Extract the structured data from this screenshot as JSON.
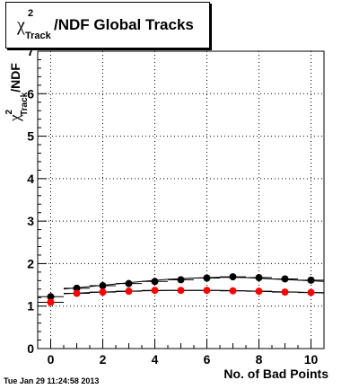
{
  "chart_data": {
    "type": "scatter",
    "title": {
      "symbol": "χ",
      "superscript": "2",
      "subscript": "Track",
      "rest": "/NDF  Global Tracks"
    },
    "xlabel": "No. of Bad Points",
    "ylabel": {
      "symbol": "χ",
      "superscript": "2",
      "subscript": "Track",
      "rest": "/NDF"
    },
    "xlim": [
      -0.5,
      10.5
    ],
    "ylim": [
      0,
      7
    ],
    "x_ticks": [
      0,
      2,
      4,
      6,
      8,
      10
    ],
    "y_ticks": [
      0,
      1,
      2,
      3,
      4,
      5,
      6,
      7
    ],
    "grid": true,
    "x": [
      0,
      1,
      2,
      3,
      4,
      5,
      6,
      7,
      8,
      9,
      10
    ],
    "series": [
      {
        "color": "#000000",
        "values": [
          1.22,
          1.42,
          1.48,
          1.53,
          1.58,
          1.62,
          1.66,
          1.69,
          1.67,
          1.64,
          1.61
        ]
      },
      {
        "color": "#ff0000",
        "values": [
          1.09,
          1.3,
          1.33,
          1.35,
          1.37,
          1.37,
          1.37,
          1.36,
          1.35,
          1.33,
          1.32
        ]
      }
    ],
    "fit_curves": [
      {
        "color": "#000000",
        "x_range": [
          0.5,
          10.5
        ],
        "values": [
          1.4,
          1.46,
          1.52,
          1.58,
          1.63,
          1.66,
          1.68,
          1.67,
          1.64,
          1.61,
          1.58
        ]
      },
      {
        "color": "#000000",
        "x_range": [
          0.5,
          10.5
        ],
        "values": [
          1.29,
          1.32,
          1.34,
          1.36,
          1.37,
          1.37,
          1.37,
          1.36,
          1.34,
          1.33,
          1.31
        ]
      }
    ]
  },
  "timestamp": "Tue Jan 29 11:24:58 2013"
}
